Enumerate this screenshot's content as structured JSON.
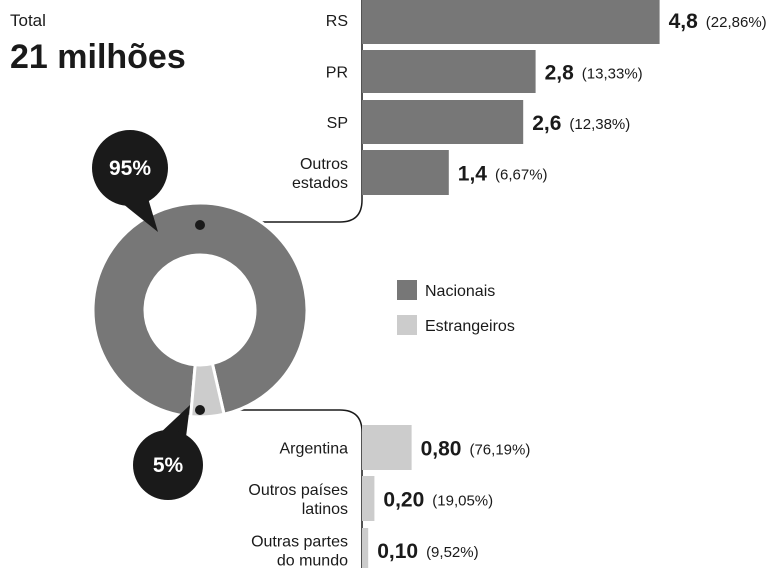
{
  "header": {
    "label": "Total",
    "value": "21 milhões"
  },
  "chart_data": [
    {
      "type": "donut",
      "categories": [
        "Nacionais",
        "Estrangeiros"
      ],
      "values": [
        95,
        5
      ],
      "value_labels": [
        "95%",
        "5%"
      ],
      "colors": [
        "#777777",
        "#cccccc"
      ]
    },
    {
      "type": "hbar",
      "categories": [
        [
          "RS"
        ],
        [
          "PR"
        ],
        [
          "SP"
        ],
        [
          "Outros",
          "estados"
        ]
      ],
      "values": [
        4.8,
        2.8,
        2.6,
        1.4
      ],
      "value_labels": [
        "4,8",
        "2,8",
        "2,6",
        "1,4"
      ],
      "percent_values": [
        22.86,
        13.33,
        12.38,
        6.67
      ],
      "percent_labels": [
        "(22,86%)",
        "(13,33%)",
        "(12,38%)",
        "(6,67%)"
      ],
      "color": "#777777"
    },
    {
      "type": "hbar",
      "categories": [
        [
          "Argentina"
        ],
        [
          "Outros países",
          "latinos"
        ],
        [
          "Outras partes",
          "do mundo"
        ]
      ],
      "values": [
        0.8,
        0.2,
        0.1
      ],
      "value_labels": [
        "0,80",
        "0,20",
        "0,10"
      ],
      "percent_values": [
        76.19,
        19.05,
        9.52
      ],
      "percent_labels": [
        "(76,19%)",
        "(19,05%)",
        "(9,52%)"
      ],
      "color": "#cccccc"
    }
  ]
}
